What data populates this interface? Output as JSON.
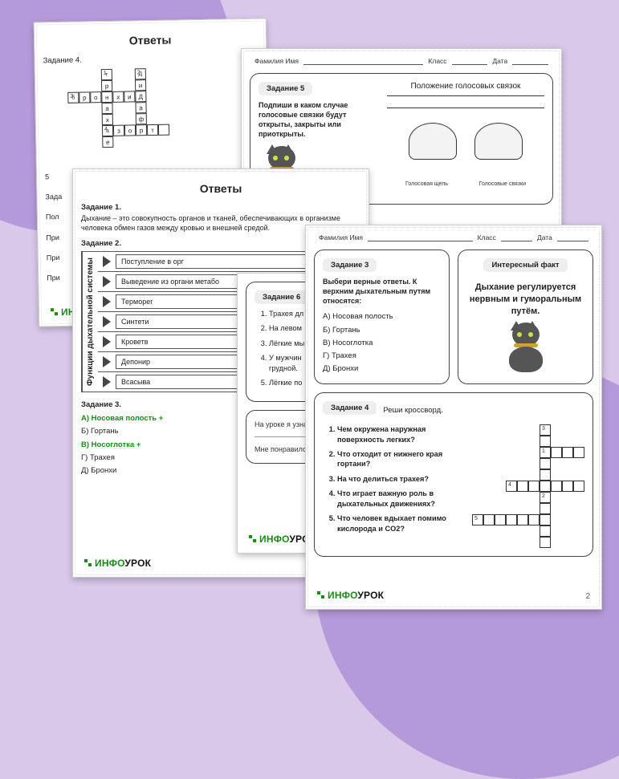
{
  "background": {
    "base": "#d9c8ea",
    "blob": "#b59ad9"
  },
  "logo": {
    "green": "ИНФО",
    "black": "УРОК"
  },
  "header": {
    "name": "Фамилия Имя",
    "class": "Класс",
    "date": "Дата"
  },
  "pageA": {
    "title": "Ответы",
    "task4": "Задание 4.",
    "crossword": {
      "cols": 9,
      "rows": 7,
      "filled": [
        [
          3,
          0
        ],
        [
          6,
          0
        ],
        [
          3,
          1
        ],
        [
          6,
          1
        ],
        [
          0,
          2
        ],
        [
          1,
          2
        ],
        [
          2,
          2
        ],
        [
          3,
          2
        ],
        [
          4,
          2
        ],
        [
          5,
          2
        ],
        [
          6,
          2
        ],
        [
          3,
          3
        ],
        [
          6,
          3
        ],
        [
          3,
          4
        ],
        [
          6,
          4
        ],
        [
          3,
          5
        ],
        [
          4,
          5
        ],
        [
          5,
          5
        ],
        [
          6,
          5
        ],
        [
          7,
          5
        ],
        [
          8,
          5
        ],
        [
          3,
          6
        ]
      ],
      "letters": {
        "0,2": "б",
        "1,2": "р",
        "2,2": "о",
        "3,2": "н",
        "4,2": "х",
        "5,2": "и",
        "6,2": "Д",
        "3,0": "т",
        "3,1": "р",
        "3,3": "а",
        "3,4": "х",
        "3,5": "а",
        "3,6": "е",
        "6,0": "Д",
        "6,1": "и",
        "6,3": "а",
        "6,4": "ф",
        "6,5": "р",
        "4,5": "з",
        "5,5": "о",
        "7,5": "т",
        "8,5": " "
      },
      "numbers": {
        "3,0": "1",
        "6,0": "2",
        "0,2": "3",
        "3,5": "4"
      }
    },
    "side_labels": [
      "Зада",
      "Пол",
      "При",
      "При",
      "При"
    ],
    "side_num": "5"
  },
  "pageB": {
    "task5": "Задание 5",
    "heading": "Положение голосовых связок",
    "instr": "Подпиши в каком случае голосовые связки будут открыты, закрыты или приоткрыты.",
    "lbl_slit": "Голосовая щель",
    "lbl_cords": "Голосовые связки"
  },
  "pageC": {
    "title": "Ответы",
    "t1": "Задание 1.",
    "t1_text": "Дыхание – это совокупность органов и тканей, обеспечивающих в организме человека обмен газов между кровью и внешней средой.",
    "t2": "Задание 2.",
    "func_title": "Функции дыхательной системы",
    "funcs": [
      "Поступление в орг",
      "Выведение из органи\nметабо",
      "Терморег",
      "Синтети",
      "Кроветв",
      "Депонир",
      "Всасыва"
    ],
    "t3": "Задание 3.",
    "answers": [
      {
        "t": "А) Носовая полость +",
        "g": true
      },
      {
        "t": "Б) Гортань",
        "g": false
      },
      {
        "t": "В) Носоглотка +",
        "g": true
      },
      {
        "t": "Г) Трахея",
        "g": false
      },
      {
        "t": "Д) Бронхи",
        "g": false
      }
    ]
  },
  "pageE": {
    "t6": "Задание 6",
    "items": [
      "Трахея дл",
      "На левом",
      "Лёгкие мы",
      "У мужчин грудной.",
      "Лёгкие по"
    ],
    "lesson": "На уроке я узнал",
    "liked": "Мне понравилос"
  },
  "pageD": {
    "t3": "Задание 3",
    "t3_instr": "Выбери верные ответы. К верхним дыхательным путям относятся:",
    "t3_opts": [
      "А) Носовая полость",
      "Б) Гортань",
      "В) Носоглотка",
      "Г) Трахея",
      "Д) Бронхи"
    ],
    "fact_title": "Интересный факт",
    "fact_text": "Дыхание регулируется нервным и гуморальным путём.",
    "t4": "Задание 4",
    "t4_instr": "Реши кроссворд.",
    "questions": [
      "Чем окружена наружная поверхность легких?",
      "Что отходит от нижнего края гортани?",
      "На что делиться трахея?",
      "Что играет важную роль в дыхательных движениях?",
      "Что человек вдыхает помимо кислорода и CO2?"
    ],
    "crossword": {
      "cols": 10,
      "rows": 11,
      "filled": [
        [
          6,
          0
        ],
        [
          6,
          1
        ],
        [
          6,
          2
        ],
        [
          7,
          2
        ],
        [
          8,
          2
        ],
        [
          9,
          2
        ],
        [
          6,
          3
        ],
        [
          6,
          4
        ],
        [
          3,
          5
        ],
        [
          4,
          5
        ],
        [
          5,
          5
        ],
        [
          6,
          5
        ],
        [
          7,
          5
        ],
        [
          8,
          5
        ],
        [
          9,
          5
        ],
        [
          6,
          6
        ],
        [
          6,
          7
        ],
        [
          0,
          8
        ],
        [
          1,
          8
        ],
        [
          2,
          8
        ],
        [
          3,
          8
        ],
        [
          4,
          8
        ],
        [
          5,
          8
        ],
        [
          6,
          8
        ],
        [
          6,
          9
        ],
        [
          6,
          10
        ]
      ],
      "numbers": {
        "6,0": "3",
        "6,2": "1",
        "3,5": "4",
        "0,8": "5",
        "6,6": "2"
      }
    },
    "page_num": "2"
  }
}
